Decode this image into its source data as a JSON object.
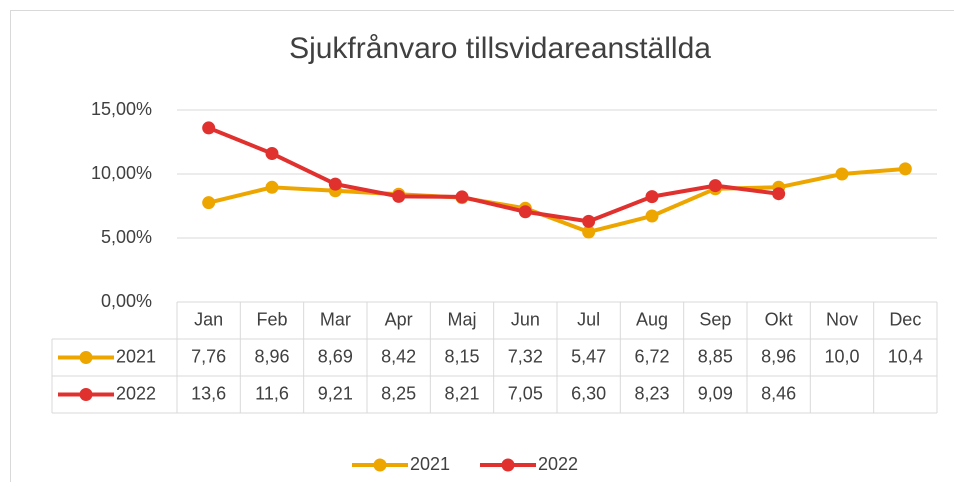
{
  "chart_data": {
    "type": "line",
    "title": "Sjukfrånvaro tillsvidareanställda",
    "categories": [
      "Jan",
      "Feb",
      "Mar",
      "Apr",
      "Maj",
      "Jun",
      "Jul",
      "Aug",
      "Sep",
      "Okt",
      "Nov",
      "Dec"
    ],
    "series": [
      {
        "name": "2021",
        "color": "#eda600",
        "values": [
          7.76,
          8.96,
          8.69,
          8.42,
          8.15,
          7.32,
          5.47,
          6.72,
          8.85,
          8.96,
          10.0,
          10.4
        ],
        "value_labels": [
          "7,76",
          "8,96",
          "8,69",
          "8,42",
          "8,15",
          "7,32",
          "5,47",
          "6,72",
          "8,85",
          "8,96",
          "10,0",
          "10,4"
        ]
      },
      {
        "name": "2022",
        "color": "#e0312f",
        "values": [
          13.6,
          11.6,
          9.21,
          8.25,
          8.21,
          7.05,
          6.3,
          8.23,
          9.09,
          8.46,
          null,
          null
        ],
        "value_labels": [
          "13,6",
          "11,6",
          "9,21",
          "8,25",
          "8,21",
          "7,05",
          "6,30",
          "8,23",
          "9,09",
          "8,46",
          null,
          null
        ]
      }
    ],
    "ylim": [
      0,
      15
    ],
    "yticks": [
      {
        "value": 0,
        "label": "0,00%"
      },
      {
        "value": 5,
        "label": "5,00%"
      },
      {
        "value": 10,
        "label": "10,00%"
      },
      {
        "value": 15,
        "label": "15,00%"
      }
    ],
    "grid": true,
    "legend": "bottom"
  }
}
